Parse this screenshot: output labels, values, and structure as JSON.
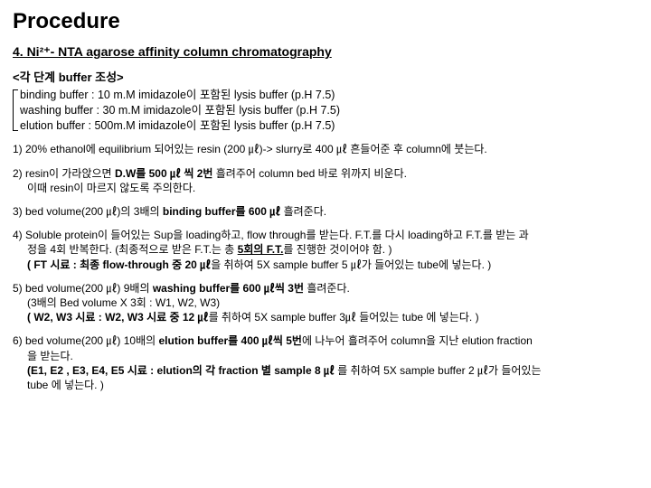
{
  "title": "Procedure",
  "subtitle": "4. Ni²⁺- NTA agarose affinity column chromatography",
  "buffer": {
    "heading": "<각 단계 buffer 조성>",
    "lines": [
      "binding buffer  :  10 m.M imidazole이 포함된 lysis buffer (p.H 7.5)",
      "washing buffer :  30 m.M imidazole이 포함된 lysis buffer (p.H 7.5)",
      "elution buffer  :   500m.M imidazole이 포함된 lysis buffer (p.H 7.5)"
    ]
  },
  "steps": {
    "s1": "1) 20% ethanol에 equilibrium 되어있는 resin (200 ㎕)-> slurry로 400 ㎕  흔들어준 후 column에 붓는다.",
    "s2a": "2) resin이 가라앉으면  ",
    "s2b": "D.W를 500 ㎕ 씩 2번",
    "s2c": " 흘려주어 column bed 바로 위까지 비운다.",
    "s2d": "이때 resin이 마르지 않도록 주의한다.",
    "s3a": "3) bed volume(200 ㎕)의 3배의 ",
    "s3b": "binding buffer를 600 ㎕",
    "s3c": " 흘려준다.",
    "s4a": "4) Soluble protein이 들어있는 Sup을 loading하고, flow through를 받는다. F.T.를 다시 loading하고 F.T.를 받는 과",
    "s4a2": "정을 4회 반복한다. (최종적으로 받은 F.T.는 총 ",
    "s4b": "5회의 F.T.",
    "s4c": "를 진행한 것이어야 함. )",
    "s4d": "( FT 시료 : 최종 flow-through 중 20 ㎕",
    "s4e": "을 취하여 5X sample buffer 5 ㎕가 들어있는 tube에 넣는다. )",
    "s5a": "5) bed volume(200 ㎕) 9배의 ",
    "s5b": "washing buffer를 600 ㎕씩 3번",
    "s5c": " 흘려준다.",
    "s5d": "(3배의 Bed volume X 3회 : W1, W2, W3)",
    "s5e": "( W2, W3 시료 : W2, W3 시료 중 12 ㎕",
    "s5f": "를  취하여 5X sample buffer 3㎕ 들어있는 tube 에 넣는다. )",
    "s6a": "6) bed volume(200 ㎕) 10배의 ",
    "s6b": "elution buffer를 400 ㎕씩 5번",
    "s6c": "에 나누어 흘려주어  column을 지난 elution fraction",
    "s6c2": "을 받는다.",
    "s6d": "(E1, E2 , E3, E4, E5 시료 : elution의 각 fraction 별 sample 8 ㎕",
    "s6e": " 를 취하여 5X sample buffer 2 ㎕가 들어있는",
    "s6e2": "tube 에 넣는다. )"
  }
}
